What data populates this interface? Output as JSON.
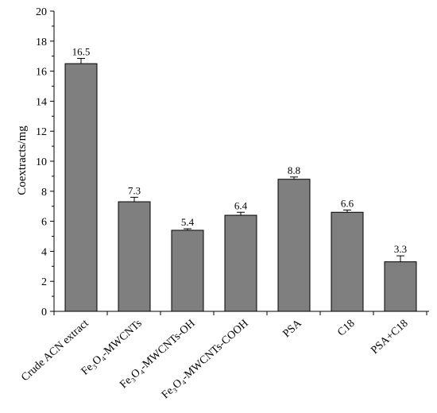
{
  "chart_data": {
    "type": "bar",
    "title": "",
    "xlabel": "",
    "ylabel": "Coextracts/mg",
    "ylim": [
      0,
      20
    ],
    "yticks": [
      0,
      2,
      4,
      6,
      8,
      10,
      12,
      14,
      16,
      18,
      20
    ],
    "categories": [
      "Crude ACN extract",
      "Fe₃O₄-MWCNTs",
      "Fe₃O₄-MWCNTs-OH",
      "Fe₃O₄-MWCNTs-COOH",
      "PSA",
      "C18",
      "PSA+C18"
    ],
    "values": [
      16.5,
      7.3,
      5.4,
      6.4,
      8.8,
      6.6,
      3.3
    ],
    "value_labels": [
      "16.5",
      "7.3",
      "5.4",
      "6.4",
      "8.8",
      "6.6",
      "3.3"
    ],
    "errors": [
      0.35,
      0.3,
      0.1,
      0.2,
      0.15,
      0.15,
      0.4
    ],
    "grid": false,
    "legend": "none",
    "colors": {
      "bar_fill": "#7f7f7f",
      "bar_stroke": "#000000",
      "axis": "#000000"
    }
  }
}
